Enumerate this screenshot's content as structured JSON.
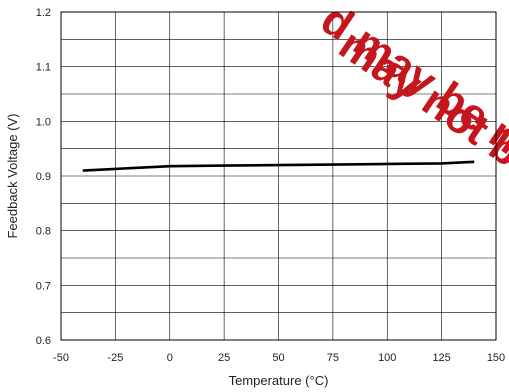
{
  "chart_data": {
    "type": "line",
    "xlabel": "Temperature (°C)",
    "ylabel": "Feedback Voltage (V)",
    "xlim": [
      -50,
      150
    ],
    "ylim": [
      0.6,
      1.2
    ],
    "xticks": [
      -50,
      -25,
      0,
      25,
      50,
      75,
      100,
      125,
      150
    ],
    "yticks": [
      0.6,
      0.7,
      0.8,
      0.9,
      1.0,
      1.1,
      1.2
    ],
    "ytick_labels": [
      "0.6",
      "0.7",
      "0.8",
      "0.9",
      "1.0",
      "1.1",
      "1.2"
    ],
    "grid": true,
    "series": [
      {
        "x": [
          -40,
          -25,
          0,
          25,
          50,
          75,
          100,
          125,
          140
        ],
        "y": [
          0.91,
          0.913,
          0.918,
          0.919,
          0.92,
          0.921,
          0.922,
          0.923,
          0.926
        ],
        "color": "#000000"
      }
    ]
  },
  "watermark": {
    "lines": [
      "d may be no",
      "may not b"
    ],
    "color": "#c4161c"
  }
}
